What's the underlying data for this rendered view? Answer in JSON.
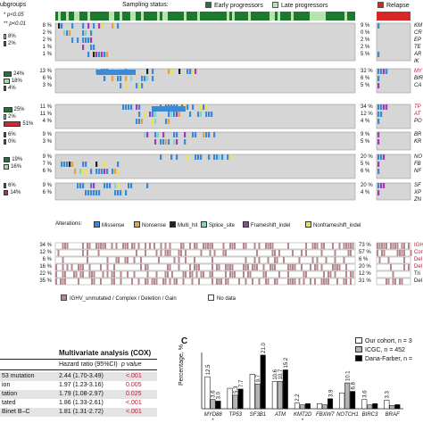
{
  "panel_a": {
    "subgroups_label": "ubgroups",
    "sig_p05": "p<0.05",
    "sig_p01": "p<0.01",
    "sampling_status_label": "Sampling status:",
    "legend_status": [
      {
        "label": "Early progressors",
        "color": "#1b7a2e"
      },
      {
        "label": "Late progressors",
        "color": "#b7e3b0"
      },
      {
        "label": "Relapse",
        "color": "#d62728"
      }
    ],
    "subgroup_blocks": [
      {
        "labels": [
          "8%",
          "2%"
        ],
        "colors": [
          "#a9dba3",
          "#d62728"
        ]
      },
      {
        "labels": [
          "24%",
          "18%",
          "4%"
        ],
        "colors": [
          "#1b7a2e",
          "#a9dba3",
          "#d62728"
        ]
      },
      {
        "labels": [
          "25%",
          "2%",
          "51%"
        ],
        "colors": [
          "#1b7a2e",
          "#a9dba3",
          "#d62728"
        ]
      },
      {
        "labels": [
          "6%",
          "0%"
        ],
        "colors": [
          "#1b7a2e",
          "#d62728"
        ]
      },
      {
        "labels": [
          "19%",
          "16%"
        ],
        "colors": [
          "#1b7a2e",
          "#a9dba3"
        ]
      },
      {
        "labels": [
          "6%",
          "14%"
        ],
        "colors": [
          "#1b7a2e",
          "#d62728"
        ]
      }
    ],
    "row_pct_left": [
      "8 %",
      "2 %",
      "2 %",
      "1 %",
      "1 %",
      "13 %",
      "6 %",
      "3 %",
      "11 %",
      "11 %",
      "4 %",
      "9 %",
      "3 %",
      "9 %",
      "7 %",
      "6 %",
      "9 %",
      "6 %"
    ],
    "row_pct_right": [
      "9 %",
      "0 %",
      "2 %",
      "2 %",
      "5 %",
      "32 %",
      "6 %",
      "5 %",
      "34 %",
      "12 %",
      "4 %",
      "9 %",
      "5 %",
      "20 %",
      "5 %",
      "6 %",
      "20 %",
      "4 %"
    ],
    "gene_labels": [
      "KM",
      "CR",
      "EP",
      "TE",
      "AR",
      "IK",
      "MY",
      "BIR",
      "CA",
      "TP",
      "AT",
      "PO",
      "BR",
      "KR",
      "NO",
      "FB",
      "NF",
      "SF",
      "XP",
      "ZN"
    ],
    "gene_label_colors": [
      "#111",
      "#111",
      "#111",
      "#111",
      "#111",
      "#111",
      "#c8102e",
      "#111",
      "#111",
      "#c8102e",
      "#c8102e",
      "#111",
      "#111",
      "#111",
      "#111",
      "#111",
      "#111",
      "#111",
      "#111",
      "#111"
    ],
    "alterations_label": "Alterations:",
    "alterations": [
      {
        "label": "Missense",
        "color": "#3b8ad8"
      },
      {
        "label": "Nonsense",
        "color": "#e8a23a"
      },
      {
        "label": "Multi_hit",
        "color": "#222222"
      },
      {
        "label": "Splice_site",
        "color": "#7fd6c6"
      },
      {
        "label": "Frameshift_indel",
        "color": "#a23bb5"
      },
      {
        "label": "Nonframeshift_indel",
        "color": "#f3e23a"
      }
    ],
    "cna_left": [
      "34 %",
      "12 %",
      "6 %",
      "16 %",
      "22 %",
      "35 %"
    ],
    "cna_right": [
      "73 %",
      "57 %",
      "6 %",
      "20 %",
      "12 %",
      "31 %"
    ],
    "cna_labels": [
      "IGH",
      "Con",
      "Del",
      "Del",
      "Tri",
      "Del"
    ],
    "cna_label_colors": [
      "#c8102e",
      "#c8102e",
      "#c8102e",
      "#c8102e",
      "#111",
      "#111"
    ],
    "cna_legend": [
      {
        "label": "IGHV_unmutated / Complex / Deletion / Gain",
        "color": "#b08a8f"
      },
      {
        "label": "No data",
        "color": "#ffffff"
      }
    ]
  },
  "panel_b": {
    "title": "Multivariate analysis (COX)",
    "col_hr": "Hazard ratio (95%CI)",
    "col_p": "p value",
    "rows": [
      {
        "name": "53 mutation",
        "hr": "2.44 (1.70-3.49)",
        "p": "<.001"
      },
      {
        "name": "ion",
        "hr": "1.97 (1.23-3.16)",
        "p": "0.005"
      },
      {
        "name": "tation",
        "hr": "1.79 (1.08-2.97)",
        "p": "0.025"
      },
      {
        "name": "tated",
        "hr": "1.86 (1.33-2.61)",
        "p": "<.001"
      },
      {
        "name": "Binet B–C",
        "hr": "1.81 (1.31-2.72)",
        "p": "<.001"
      }
    ]
  },
  "panel_c": {
    "letter": "C",
    "legend": [
      {
        "label": "Our cohort, n = 3",
        "color": "#ffffff"
      },
      {
        "label": "ICGC, n = 452",
        "color": "#b5b5b5"
      },
      {
        "label": "Dana-Farber, n =",
        "color": "#000000"
      }
    ]
  },
  "chart_data": {
    "type": "bar",
    "ylabel": "Percentage, %",
    "categories": [
      "MYD88",
      "TP53",
      "SF3B1",
      "ATM",
      "KMT2D",
      "FBXW7",
      "NOTCH1",
      "BIRC3",
      "BRAF"
    ],
    "series": [
      {
        "name": "Our cohort, n = 3",
        "values": [
          12.5,
          8.0,
          13.5,
          10.6,
          2.2,
          2.0,
          6.2,
          3.6,
          3.3
        ]
      },
      {
        "name": "ICGC, n = 452",
        "values": [
          3.6,
          5.3,
          9.7,
          10.7,
          1.5,
          1.5,
          10.1,
          1.5,
          1.3
        ]
      },
      {
        "name": "Dana-Farber, n =",
        "values": [
          3.0,
          7.7,
          21.0,
          15.2,
          2.0,
          3.9,
          6.8,
          2.0,
          1.6
        ]
      }
    ],
    "value_labels": [
      [
        "12.5",
        "3.6",
        "3.0"
      ],
      [
        "",
        "5.3",
        "7.7"
      ],
      [
        "",
        "9.7",
        "21.0"
      ],
      [
        "10.6",
        "10.7",
        "15.2"
      ],
      [
        "2.2",
        "",
        ""
      ],
      [
        "",
        "",
        "3.9"
      ],
      [
        "",
        "10.1",
        "6.8"
      ],
      [
        "3.6",
        "",
        ""
      ],
      [
        "3.3",
        "",
        ""
      ]
    ],
    "ylim": [
      0,
      22
    ]
  }
}
